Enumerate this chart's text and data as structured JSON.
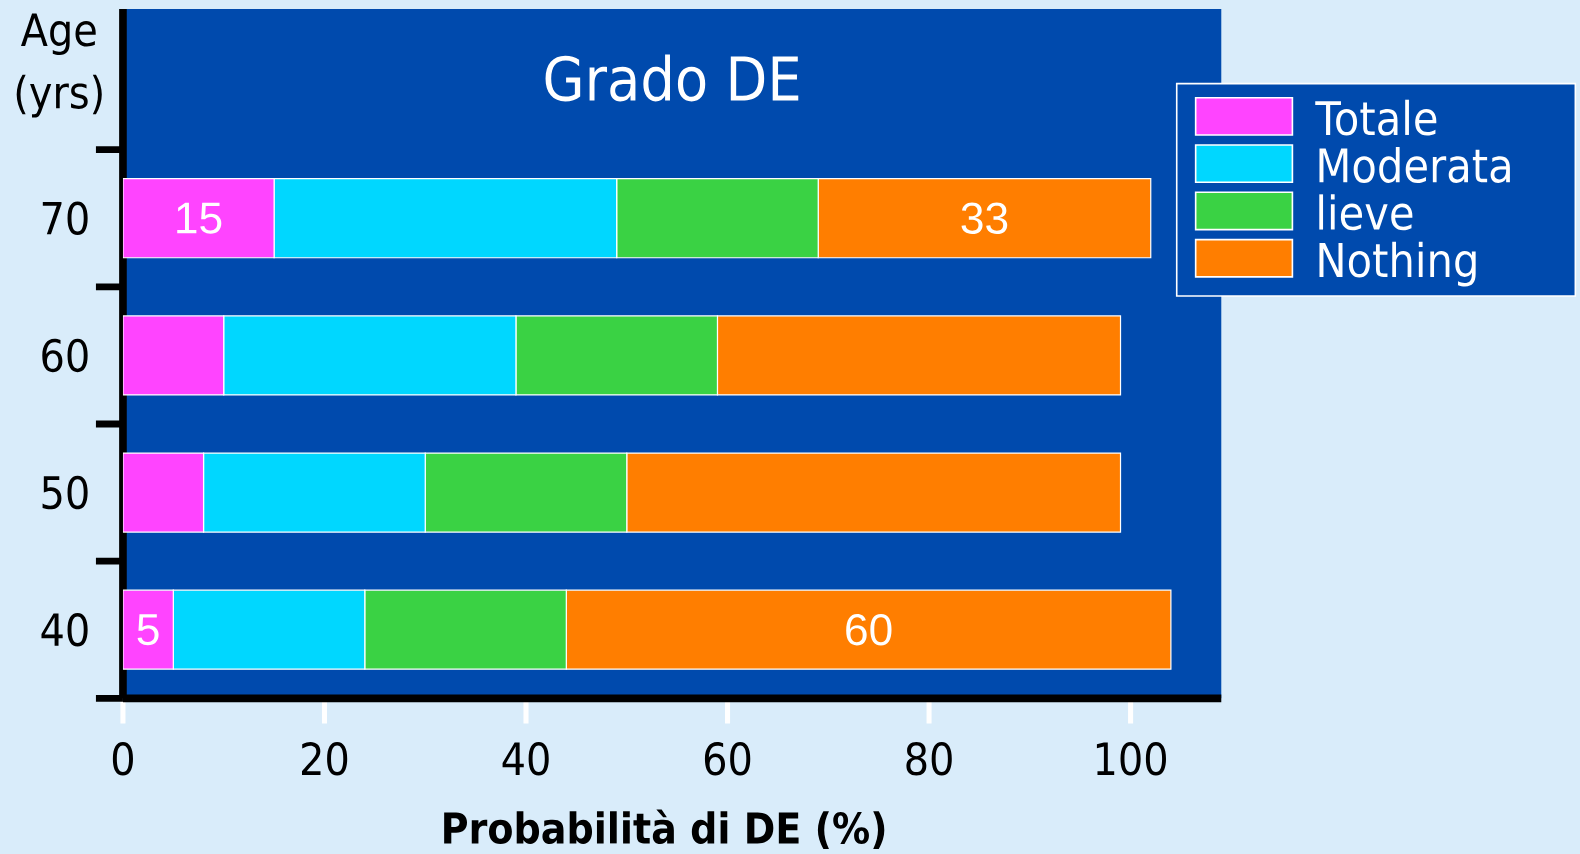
{
  "chart_data": {
    "type": "bar",
    "orientation": "horizontal",
    "stacked": true,
    "title": "Grado DE",
    "xlabel": "Probabilità di DE  (%)",
    "ylabel": "Age (yrs)",
    "categories": [
      "70",
      "60",
      "50",
      "40"
    ],
    "series": [
      {
        "name": "Totale",
        "color": "#ff44ff",
        "values": [
          15,
          10,
          8,
          5
        ],
        "value_labels": [
          "15",
          null,
          null,
          "5"
        ]
      },
      {
        "name": "Moderata",
        "color": "#00d7ff",
        "values": [
          34,
          29,
          22,
          19
        ]
      },
      {
        "name": "lieve",
        "color": "#3ad244",
        "values": [
          20,
          20,
          20,
          20
        ]
      },
      {
        "name": "Nothing",
        "color": "#ff7e00",
        "values": [
          33,
          40,
          49,
          60
        ],
        "value_labels": [
          "33",
          null,
          null,
          "60"
        ]
      }
    ],
    "xlim": [
      0,
      109
    ],
    "xticks": [
      0,
      20,
      40,
      60,
      80,
      100
    ],
    "legend": "top right"
  }
}
